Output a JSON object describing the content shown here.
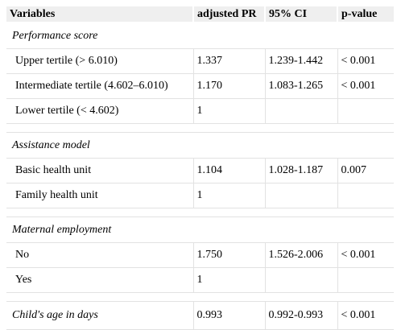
{
  "header": {
    "variables": "Variables",
    "adjusted_pr": "adjusted PR",
    "ci": "95% CI",
    "p_value": "p-value"
  },
  "sections": {
    "performance": {
      "title": "Performance score",
      "rows": [
        {
          "label": "Upper tertile (> 6.010)",
          "pr": "1.337",
          "ci": "1.239-1.442",
          "p": "< 0.001"
        },
        {
          "label": "Intermediate tertile (4.602–6.010)",
          "pr": "1.170",
          "ci": "1.083-1.265",
          "p": "< 0.001"
        },
        {
          "label": "Lower tertile (< 4.602)",
          "pr": "1",
          "ci": "",
          "p": ""
        }
      ]
    },
    "assistance": {
      "title": "Assistance model",
      "rows": [
        {
          "label": "Basic health unit",
          "pr": "1.104",
          "ci": "1.028-1.187",
          "p": "0.007"
        },
        {
          "label": "Family health unit",
          "pr": "1",
          "ci": "",
          "p": ""
        }
      ]
    },
    "maternal": {
      "title": "Maternal employment",
      "rows": [
        {
          "label": "No",
          "pr": "1.750",
          "ci": "1.526-2.006",
          "p": "< 0.001"
        },
        {
          "label": "Yes",
          "pr": "1",
          "ci": "",
          "p": ""
        }
      ]
    },
    "child_age": {
      "label": "Child's age in days",
      "pr": "0.993",
      "ci": "0.992-0.993",
      "p": "< 0.001"
    }
  }
}
